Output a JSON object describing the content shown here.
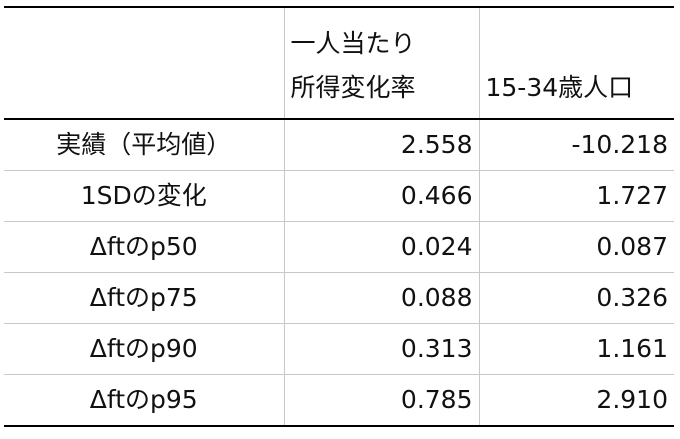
{
  "table": {
    "header": {
      "col0": "",
      "col1_line1": "一人当たり",
      "col1_line2": "所得変化率",
      "col2": "15-34歳人口"
    },
    "rows": [
      {
        "label": "実績（平均値）",
        "v1": "2.558",
        "v2": "-10.218"
      },
      {
        "label": "1SDの変化",
        "v1": "0.466",
        "v2": "1.727"
      },
      {
        "label": "Δftのp50",
        "v1": "0.024",
        "v2": "0.087"
      },
      {
        "label": "Δftのp75",
        "v1": "0.088",
        "v2": "0.326"
      },
      {
        "label": "Δftのp90",
        "v1": "0.313",
        "v2": "1.161"
      },
      {
        "label": "Δftのp95",
        "v1": "0.785",
        "v2": "2.910"
      }
    ]
  }
}
